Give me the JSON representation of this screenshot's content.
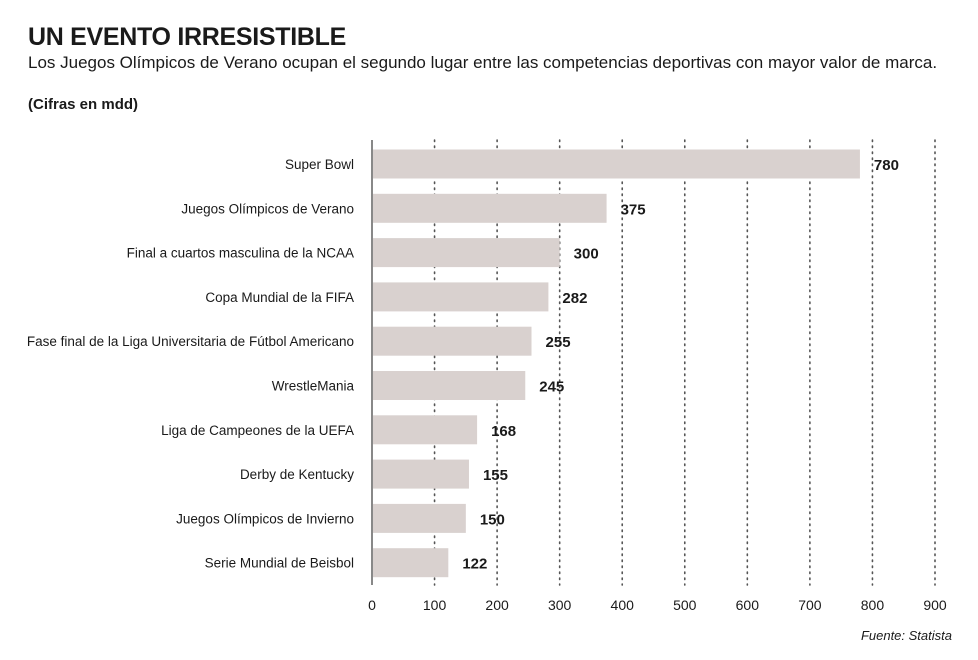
{
  "header": {
    "title": "UN EVENTO IRRESISTIBLE",
    "subtitle": "Los Juegos Olímpicos de Verano ocupan el segundo lugar entre las competencias deportivas con mayor valor de marca.",
    "units": "(Cifras en mdd)"
  },
  "footer": {
    "source": "Fuente: Statista"
  },
  "colors": {
    "bar": "#d9d1cf",
    "axis": "#888888",
    "grid": "#555555"
  },
  "chart_data": {
    "type": "bar",
    "orientation": "horizontal",
    "categories": [
      "Super Bowl",
      "Juegos Olímpicos de Verano",
      "Final a cuartos masculina de la NCAA",
      "Copa Mundial de la FIFA",
      "Fase final de la Liga Universitaria de Fútbol Americano",
      "WrestleMania",
      "Liga de Campeones de la UEFA",
      "Derby de Kentucky",
      "Juegos Olímpicos de Invierno",
      "Serie Mundial de Beisbol"
    ],
    "values": [
      780,
      375,
      300,
      282,
      255,
      245,
      168,
      155,
      150,
      122
    ],
    "xlim": [
      0,
      900
    ],
    "xticks": [
      0,
      100,
      200,
      300,
      400,
      500,
      600,
      700,
      800,
      900
    ],
    "grid": "vertical dotted",
    "legend": "none"
  }
}
